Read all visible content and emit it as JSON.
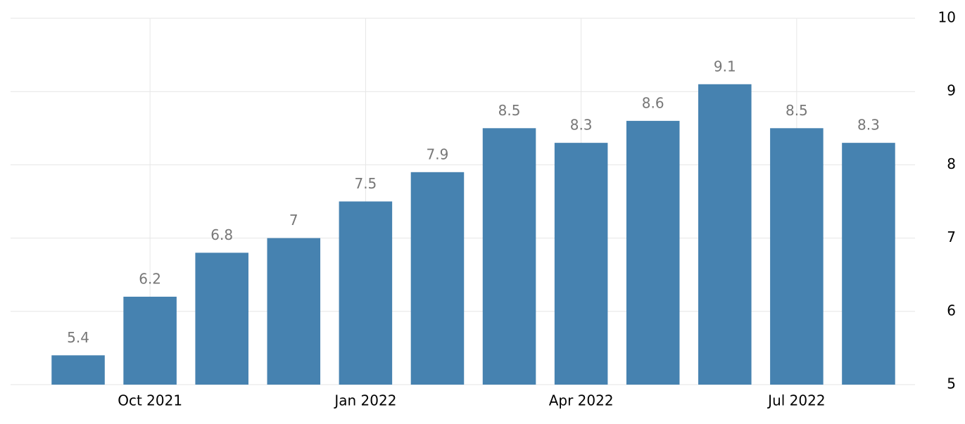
{
  "chart_data": {
    "type": "bar",
    "categories": [
      null,
      "Oct 2021",
      null,
      null,
      "Jan 2022",
      null,
      null,
      "Apr 2022",
      null,
      null,
      "Jul 2022",
      null
    ],
    "values": [
      5.4,
      6.2,
      6.8,
      7,
      7.5,
      7.9,
      8.5,
      8.3,
      8.6,
      9.1,
      8.5,
      8.3
    ],
    "color": "#4682b0",
    "ylim": [
      5,
      10
    ],
    "yticks": [
      5,
      6,
      7,
      8,
      9,
      10
    ],
    "grid": true
  }
}
